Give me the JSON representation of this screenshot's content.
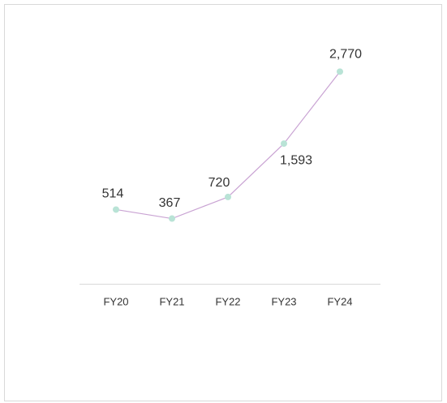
{
  "chart_data": {
    "type": "line",
    "categories": [
      "FY20",
      "FY21",
      "FY22",
      "FY23",
      "FY24"
    ],
    "series": [
      {
        "color": "#c9a3d3",
        "marker_color": "#b9e3d6",
        "values": [
          514,
          367,
          720,
          1593,
          2770
        ],
        "value_labels": [
          "514",
          "367",
          "720",
          "1,593",
          "2,770"
        ]
      }
    ],
    "ylim": [
      -700,
      3000
    ]
  }
}
